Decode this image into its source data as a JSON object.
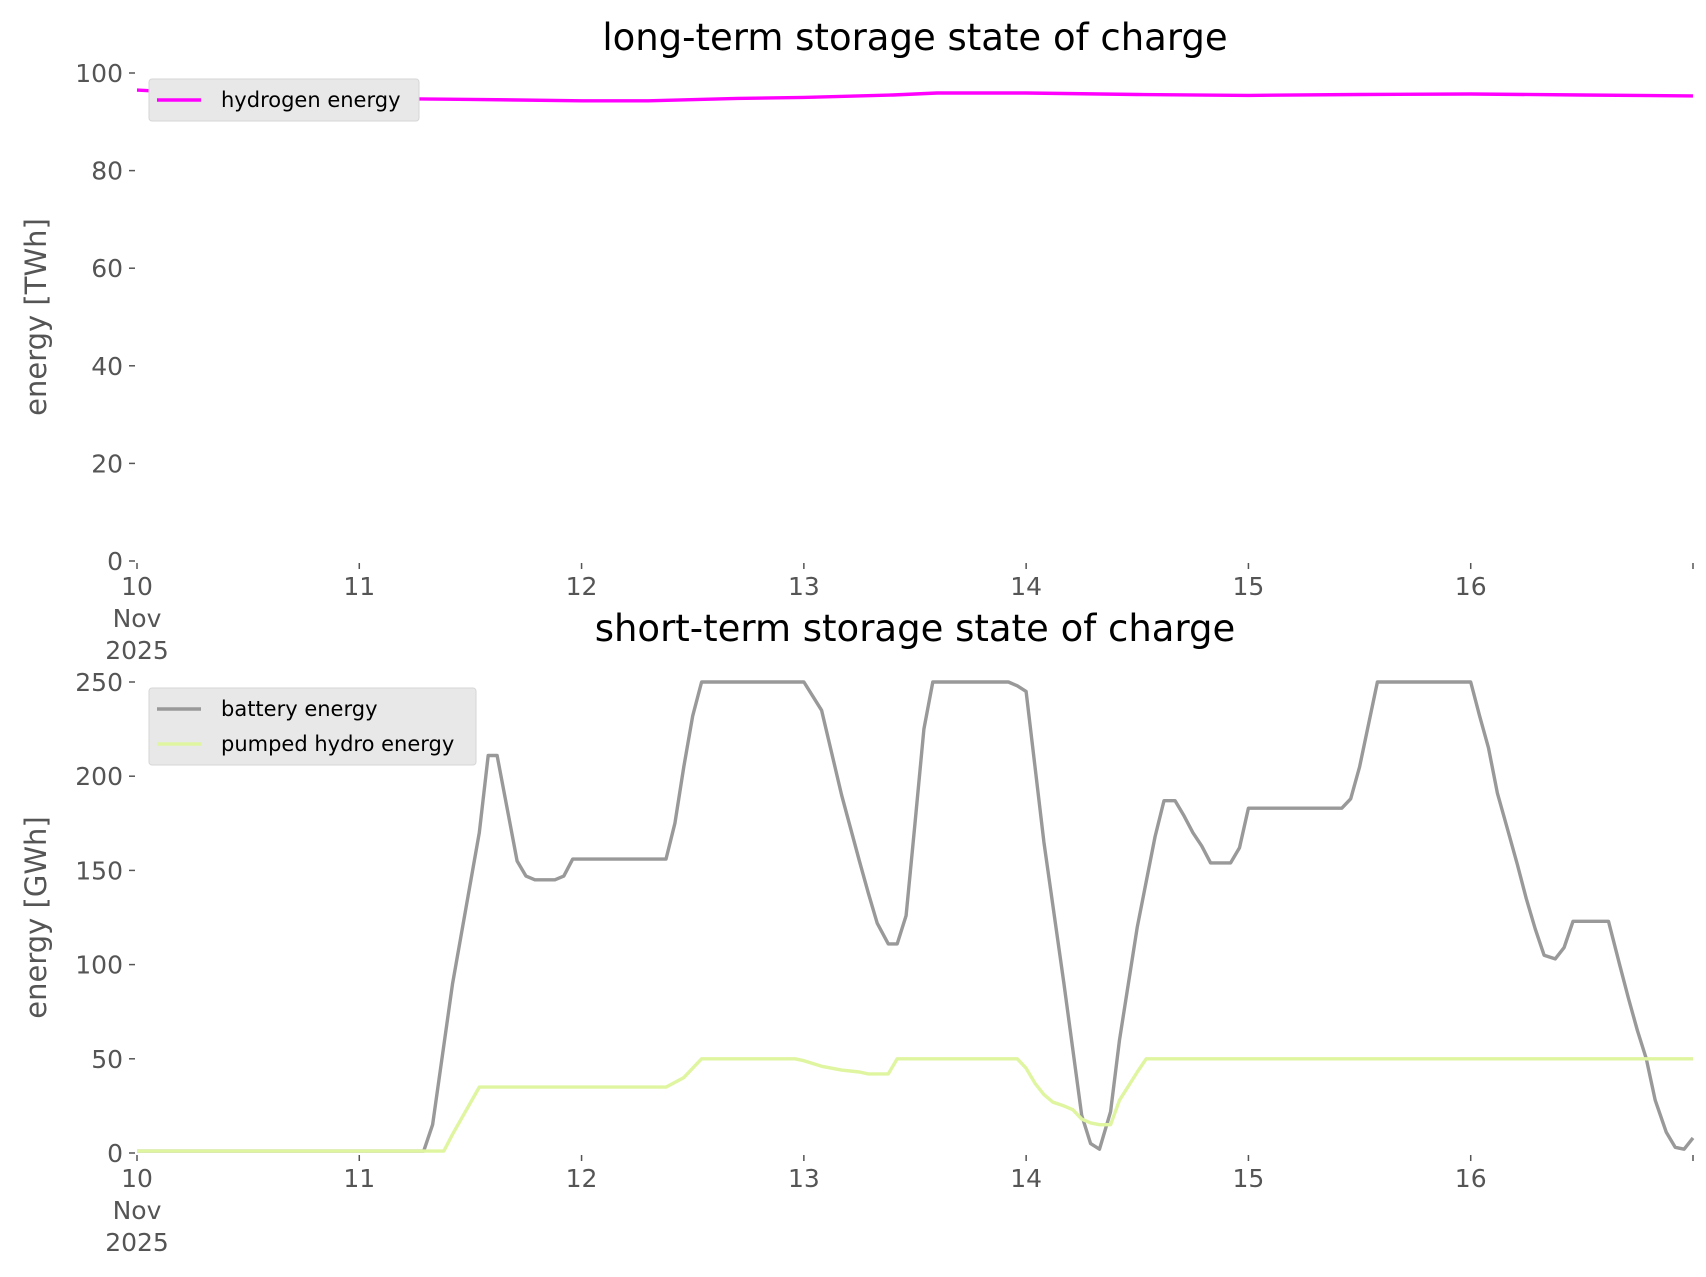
{
  "chart_data": [
    {
      "type": "line",
      "title": "long-term storage state of charge",
      "xlabel": "",
      "ylabel": "energy [TWh]",
      "ylim": [
        0,
        100
      ],
      "yticks": [
        0,
        20,
        40,
        60,
        80,
        100
      ],
      "xlim": [
        0,
        7
      ],
      "xtick_labels": [
        {
          "x": 0,
          "lines": [
            "10",
            "Nov",
            "2025"
          ]
        },
        {
          "x": 1,
          "lines": [
            "11"
          ]
        },
        {
          "x": 2,
          "lines": [
            "12"
          ]
        },
        {
          "x": 3,
          "lines": [
            "13"
          ]
        },
        {
          "x": 4,
          "lines": [
            "14"
          ]
        },
        {
          "x": 5,
          "lines": [
            "15"
          ]
        },
        {
          "x": 6,
          "lines": [
            "16"
          ]
        }
      ],
      "grid": false,
      "legend_position": "upper-left",
      "series": [
        {
          "name": "hydrogen energy",
          "color": "#ff00ff",
          "x": [
            0,
            0.5,
            1,
            1.5,
            2,
            2.3,
            2.7,
            3,
            3.4,
            3.6,
            4,
            4.5,
            5,
            5.5,
            6,
            6.5,
            7
          ],
          "y": [
            96.5,
            95.3,
            94.8,
            94.6,
            94.3,
            94.3,
            94.8,
            95.0,
            95.5,
            95.9,
            95.9,
            95.6,
            95.4,
            95.6,
            95.7,
            95.5,
            95.3
          ]
        }
      ]
    },
    {
      "type": "line",
      "title": "short-term storage state of charge",
      "xlabel": "",
      "ylabel": "energy [GWh]",
      "ylim": [
        0,
        250
      ],
      "yticks": [
        0,
        50,
        100,
        150,
        200,
        250
      ],
      "xlim": [
        0,
        7
      ],
      "xtick_labels": [
        {
          "x": 0,
          "lines": [
            "10",
            "Nov",
            "2025"
          ]
        },
        {
          "x": 1,
          "lines": [
            "11"
          ]
        },
        {
          "x": 2,
          "lines": [
            "12"
          ]
        },
        {
          "x": 3,
          "lines": [
            "13"
          ]
        },
        {
          "x": 4,
          "lines": [
            "14"
          ]
        },
        {
          "x": 5,
          "lines": [
            "15"
          ]
        },
        {
          "x": 6,
          "lines": [
            "16"
          ]
        }
      ],
      "grid": false,
      "legend_position": "upper-left",
      "series": [
        {
          "name": "battery energy",
          "color": "#999999",
          "x": [
            0,
            1.29,
            1.33,
            1.42,
            1.54,
            1.58,
            1.62,
            1.67,
            1.71,
            1.75,
            1.79,
            1.83,
            1.88,
            1.92,
            1.96,
            2.0,
            2.08,
            2.25,
            2.38,
            2.42,
            2.46,
            2.5,
            2.54,
            2.6,
            2.8,
            2.96,
            3.0,
            3.08,
            3.17,
            3.25,
            3.29,
            3.33,
            3.38,
            3.42,
            3.46,
            3.5,
            3.54,
            3.58,
            3.67,
            3.79,
            3.88,
            3.92,
            3.96,
            4.0,
            4.08,
            4.17,
            4.25,
            4.29,
            4.33,
            4.38,
            4.42,
            4.5,
            4.58,
            4.62,
            4.67,
            4.71,
            4.75,
            4.79,
            4.83,
            4.88,
            4.92,
            4.96,
            5.0,
            5.08,
            5.25,
            5.33,
            5.38,
            5.42,
            5.46,
            5.5,
            5.58,
            5.75,
            5.96,
            6.0,
            6.04,
            6.08,
            6.12,
            6.17,
            6.21,
            6.25,
            6.29,
            6.33,
            6.38,
            6.42,
            6.46,
            6.5,
            6.54,
            6.58,
            6.62,
            6.67,
            6.71,
            6.75,
            6.79,
            6.83,
            6.88,
            6.92,
            6.96,
            7.0
          ],
          "y": [
            1,
            1,
            15,
            90,
            170,
            211,
            211,
            180,
            155,
            147,
            145,
            145,
            145,
            147,
            156,
            156,
            156,
            156,
            156,
            175,
            205,
            232,
            250,
            250,
            250,
            250,
            250,
            235,
            190,
            155,
            138,
            122,
            111,
            111,
            126,
            175,
            225,
            250,
            250,
            250,
            250,
            250,
            248,
            245,
            165,
            90,
            20,
            5,
            2,
            22,
            60,
            120,
            168,
            187,
            187,
            179,
            170,
            163,
            154,
            154,
            154,
            162,
            183,
            183,
            183,
            183,
            183,
            183,
            188,
            205,
            250,
            250,
            250,
            250,
            232,
            215,
            191,
            170,
            153,
            135,
            119,
            105,
            103,
            109,
            123,
            123,
            123,
            123,
            123,
            100,
            82,
            65,
            50,
            28,
            11,
            3,
            2,
            8
          ]
        },
        {
          "name": "pumped hydro energy",
          "color": "#dff5a0",
          "x": [
            0,
            1.38,
            1.42,
            1.54,
            1.75,
            2.0,
            2.25,
            2.38,
            2.46,
            2.5,
            2.54,
            2.75,
            2.96,
            3.0,
            3.08,
            3.17,
            3.25,
            3.29,
            3.33,
            3.38,
            3.42,
            3.46,
            3.5,
            3.75,
            3.96,
            4.0,
            4.04,
            4.08,
            4.12,
            4.17,
            4.21,
            4.25,
            4.29,
            4.33,
            4.38,
            4.42,
            4.5,
            4.54,
            4.75,
            5.0,
            5.5,
            6.0,
            6.5,
            7.0
          ],
          "y": [
            1,
            1,
            10,
            35,
            35,
            35,
            35,
            35,
            40,
            45,
            50,
            50,
            50,
            49,
            46,
            44,
            43,
            42,
            42,
            42,
            50,
            50,
            50,
            50,
            50,
            45,
            37,
            31,
            27,
            25,
            23,
            18,
            16,
            15,
            15,
            28,
            43,
            50,
            50,
            50,
            50,
            50,
            50,
            50
          ]
        }
      ]
    }
  ]
}
